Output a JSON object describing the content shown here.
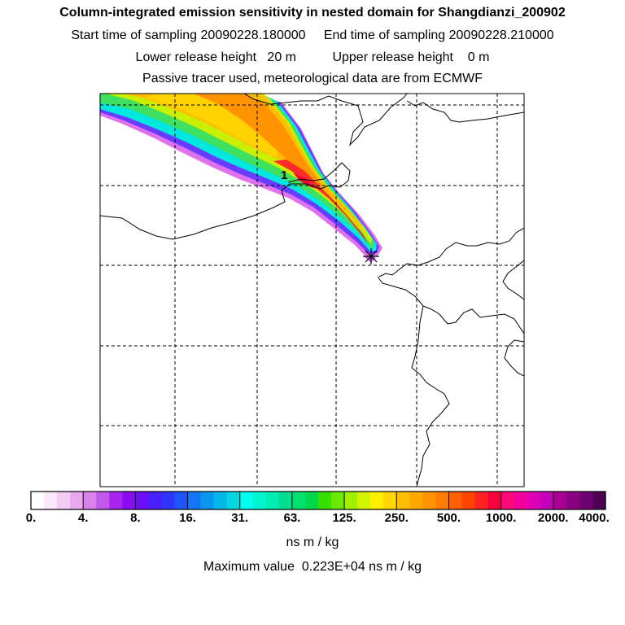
{
  "header": {
    "title": "Column-integrated emission sensitivity in nested domain for Shangdianzi_200902",
    "line2": "Start time of sampling 20090228.180000     End time of sampling 20090228.210000",
    "line3": "Lower release height   20 m          Upper release height    0 m",
    "line4": "Passive tracer used, meteorological data are from ECMWF"
  },
  "chart_data": {
    "type": "heatmap",
    "title": "Column-integrated emission sensitivity in nested domain for Shangdianzi_200902",
    "colorbar": {
      "ticks": [
        "0.",
        "4.",
        "8.",
        "16.",
        "31.",
        "63.",
        "125.",
        "250.",
        "500.",
        "1000.",
        "2000.",
        "4000."
      ],
      "units": "ns m / kg",
      "colors": [
        "#ffffff",
        "#fbe6fb",
        "#f3cbf3",
        "#e9a9ef",
        "#d884ec",
        "#c257ec",
        "#a824ef",
        "#8a0cf4",
        "#6a0ff8",
        "#4a1efb",
        "#3035fb",
        "#2054fb",
        "#1476f5",
        "#0a98ee",
        "#05b7e8",
        "#04d5e2",
        "#00fff0",
        "#00f5d0",
        "#00ecb0",
        "#00e090",
        "#00e070",
        "#00d84c",
        "#38e000",
        "#6ae800",
        "#a0f000",
        "#d2f400",
        "#fff000",
        "#ffd600",
        "#ffbe00",
        "#ffa800",
        "#ff9400",
        "#ff7c00",
        "#ff6000",
        "#ff4400",
        "#ff2222",
        "#f4003c",
        "#ff0a78",
        "#f2009a",
        "#e000b4",
        "#c600b8",
        "#a80096",
        "#8c0084",
        "#700070",
        "#500054"
      ]
    },
    "release_site_label": "1",
    "maximum_value": "Maximum value  0.223E+04 ns m / kg"
  }
}
